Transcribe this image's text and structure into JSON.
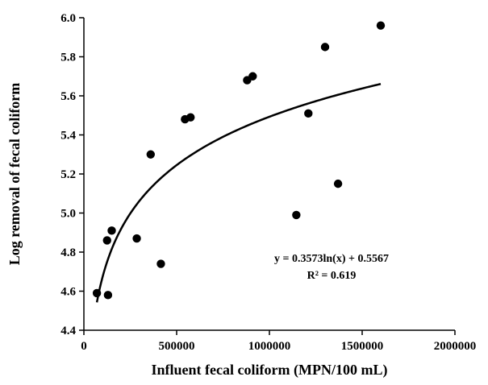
{
  "chart_data": {
    "type": "scatter",
    "title": "",
    "xlabel": "Influent fecal coliform (MPN/100 mL)",
    "ylabel": "Log removal of fecal coliform",
    "xlim": [
      0,
      2000000
    ],
    "ylim": [
      4.4,
      6.0
    ],
    "x_ticks": [
      "0",
      "500000",
      "1000000",
      "1500000",
      "2000000"
    ],
    "y_ticks": [
      "4.4",
      "4.6",
      "4.8",
      "5.0",
      "5.2",
      "5.4",
      "5.6",
      "5.8",
      "6.0"
    ],
    "grid": false,
    "legend": "none",
    "marker_color": "#000000",
    "points": [
      {
        "x": 70000,
        "y": 4.59
      },
      {
        "x": 130000,
        "y": 4.58
      },
      {
        "x": 125000,
        "y": 4.86
      },
      {
        "x": 150000,
        "y": 4.91
      },
      {
        "x": 285000,
        "y": 4.87
      },
      {
        "x": 360000,
        "y": 5.3
      },
      {
        "x": 415000,
        "y": 4.74
      },
      {
        "x": 545000,
        "y": 5.48
      },
      {
        "x": 575000,
        "y": 5.49
      },
      {
        "x": 880000,
        "y": 5.68
      },
      {
        "x": 910000,
        "y": 5.7
      },
      {
        "x": 1145000,
        "y": 4.99
      },
      {
        "x": 1210000,
        "y": 5.51
      },
      {
        "x": 1300000,
        "y": 5.85
      },
      {
        "x": 1370000,
        "y": 5.15
      },
      {
        "x": 1600000,
        "y": 5.96
      }
    ],
    "trendline": {
      "type": "logarithmic",
      "a": 0.3573,
      "b": 0.5567,
      "x_range": [
        70000,
        1600000
      ],
      "equation_label": "y = 0.3573ln(x) + 0.5567",
      "r2_label": "R² = 0.619"
    }
  }
}
